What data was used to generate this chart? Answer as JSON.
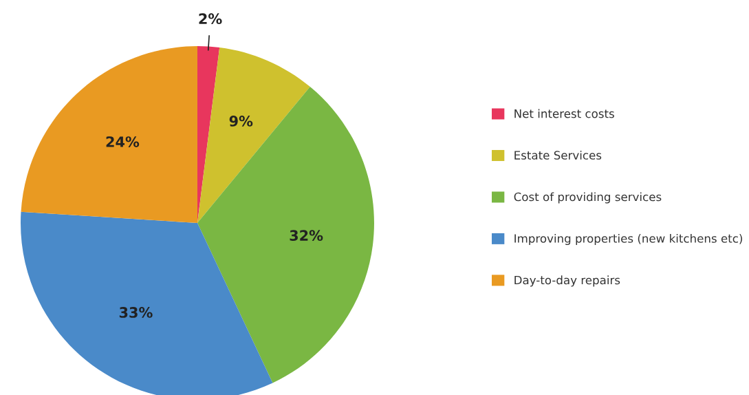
{
  "chart_data": {
    "type": "pie",
    "categories": [
      "Net interest costs",
      "Estate Services",
      "Cost of providing services",
      "Improving properties (new kitchens etc)",
      "Day-to-day repairs"
    ],
    "values": [
      2,
      9,
      32,
      33,
      24
    ],
    "colors": [
      "#e8365d",
      "#cfc12e",
      "#7ab743",
      "#4a8ac9",
      "#e99a22"
    ],
    "value_labels": [
      "2%",
      "9%",
      "32%",
      "33%",
      "24%"
    ],
    "legend": "right"
  }
}
